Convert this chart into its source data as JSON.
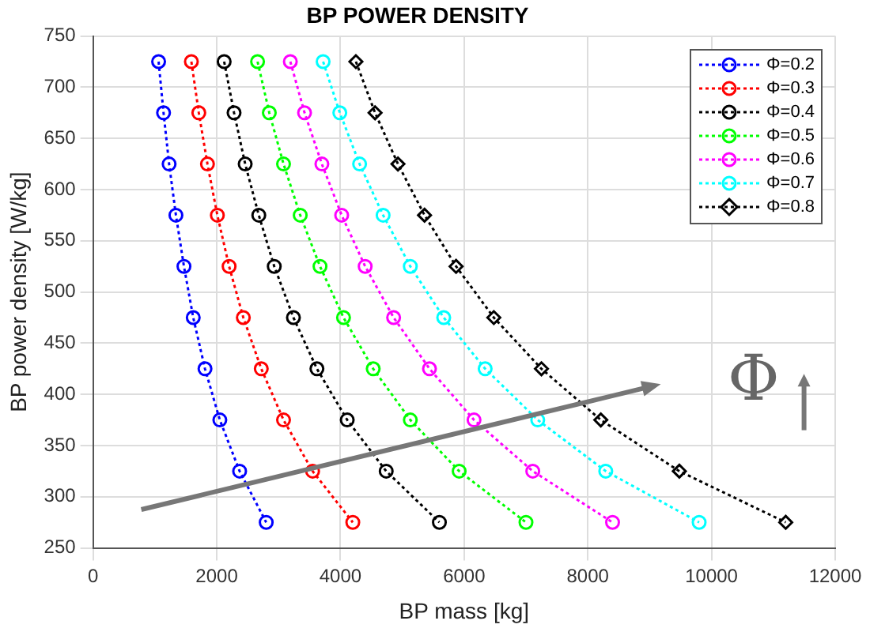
{
  "chart_data": {
    "type": "line",
    "title": "BP POWER DENSITY",
    "xlabel": "BP mass [kg]",
    "ylabel": "BP power density [W/kg]",
    "xlim": [
      0,
      12000
    ],
    "xticks": [
      0,
      2000,
      4000,
      6000,
      8000,
      10000,
      12000
    ],
    "ylim": [
      250,
      750
    ],
    "yticks": [
      250,
      300,
      350,
      400,
      450,
      500,
      550,
      600,
      650,
      700,
      750
    ],
    "grid": true,
    "legend": "top right",
    "line_style": "dotted",
    "marker": "circle",
    "annotations": [
      "Φ"
    ],
    "series": [
      {
        "name": "Φ=0.2",
        "color": "#0000ff",
        "x": [
          1060,
          1140,
          1230,
          1340,
          1470,
          1620,
          1810,
          2050,
          2370,
          2800
        ],
        "values": [
          725,
          675,
          625,
          575,
          525,
          475,
          425,
          375,
          325,
          275
        ]
      },
      {
        "name": "Φ=0.3",
        "color": "#ff0000",
        "x": [
          1590,
          1710,
          1850,
          2010,
          2200,
          2430,
          2720,
          3080,
          3550,
          4200
        ],
        "values": [
          725,
          675,
          625,
          575,
          525,
          475,
          425,
          375,
          325,
          275
        ]
      },
      {
        "name": "Φ=0.4",
        "color": "#000000",
        "x": [
          2120,
          2280,
          2460,
          2680,
          2930,
          3240,
          3620,
          4110,
          4740,
          5600
        ],
        "values": [
          725,
          675,
          625,
          575,
          525,
          475,
          425,
          375,
          325,
          275
        ]
      },
      {
        "name": "Φ=0.5",
        "color": "#00ff00",
        "x": [
          2660,
          2850,
          3080,
          3350,
          3670,
          4050,
          4530,
          5130,
          5920,
          7000
        ],
        "values": [
          725,
          675,
          625,
          575,
          525,
          475,
          425,
          375,
          325,
          275
        ]
      },
      {
        "name": "Φ=0.6",
        "color": "#ff00ff",
        "x": [
          3190,
          3420,
          3700,
          4020,
          4400,
          4860,
          5440,
          6160,
          7110,
          8400
        ],
        "values": [
          725,
          675,
          625,
          575,
          525,
          475,
          425,
          375,
          325,
          275
        ]
      },
      {
        "name": "Φ=0.7",
        "color": "#00ffff",
        "x": [
          3720,
          3990,
          4310,
          4690,
          5130,
          5670,
          6340,
          7190,
          8290,
          9800
        ],
        "values": [
          725,
          675,
          625,
          575,
          525,
          475,
          425,
          375,
          325,
          275
        ]
      },
      {
        "name": "Φ=0.8",
        "color": "#000000",
        "marker": "diamond",
        "x": [
          4250,
          4560,
          4930,
          5360,
          5870,
          6480,
          7250,
          8210,
          9480,
          11200
        ],
        "values": [
          725,
          675,
          625,
          575,
          525,
          475,
          425,
          375,
          325,
          275
        ]
      }
    ]
  }
}
